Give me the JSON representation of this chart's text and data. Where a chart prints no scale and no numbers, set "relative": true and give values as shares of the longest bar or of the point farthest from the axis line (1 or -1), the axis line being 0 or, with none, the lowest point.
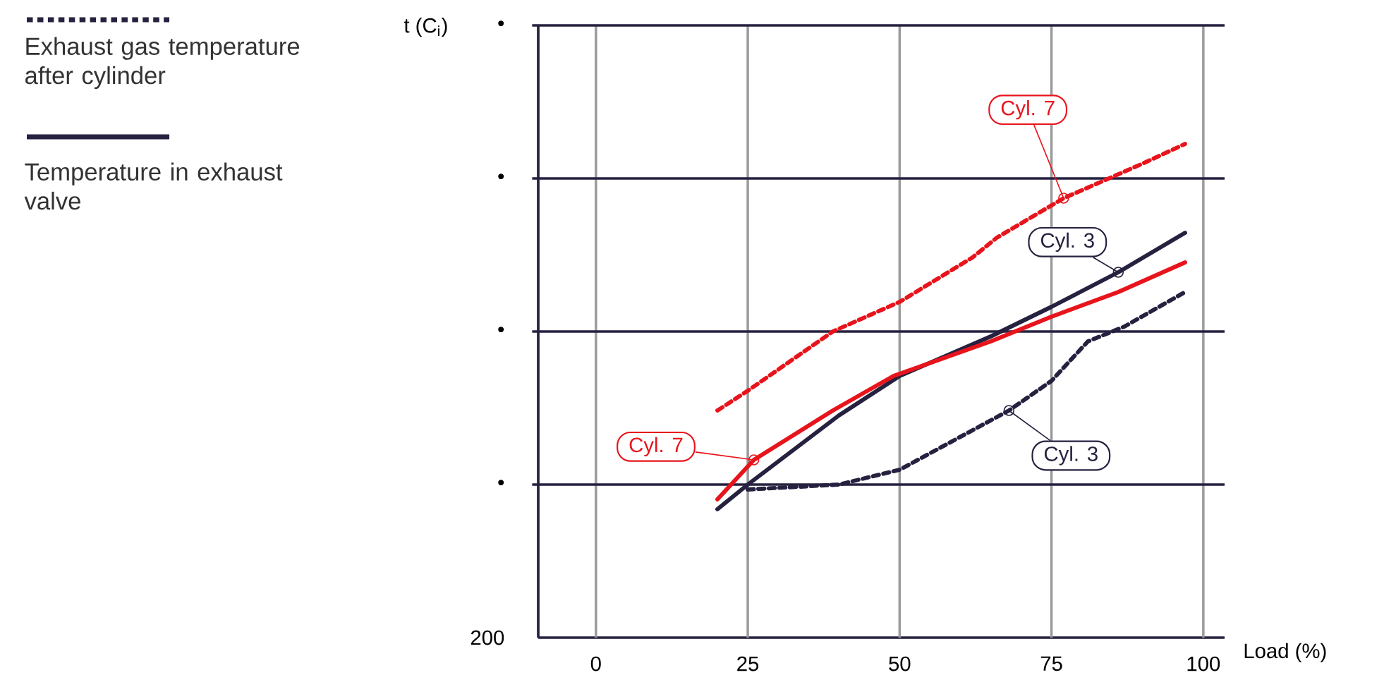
{
  "chart_data": {
    "type": "line",
    "relative": true,
    "xlabel": "Load (%)",
    "xlim": [
      -9.5,
      103.5
    ],
    "xticks": [
      0,
      25,
      50,
      75,
      100
    ],
    "grid": "x",
    "marker": "none",
    "ref_lines": [
      {
        "axis": "y",
        "value": 0.31,
        "color": "#25213f"
      },
      {
        "axis": "y",
        "value": 0.62,
        "color": "#25213f"
      },
      {
        "axis": "y",
        "value": 0.93,
        "color": "#25213f"
      },
      {
        "axis": "y",
        "value": 1.24,
        "color": "#25213f"
      }
    ],
    "series": [
      {
        "color": "#e8141c",
        "line_style": "dashed",
        "x": [
          20,
          25,
          39,
          50,
          62,
          66,
          77,
          90,
          97
        ],
        "values": [
          0.46,
          0.5,
          0.62,
          0.68,
          0.77,
          0.81,
          0.89,
          0.96,
          1
        ]
      },
      {
        "color": "#25213f",
        "line_style": "dashed",
        "x": [
          25,
          40,
          50,
          59,
          68,
          75,
          81,
          87,
          97
        ],
        "values": [
          0.3,
          0.31,
          0.34,
          0.4,
          0.46,
          0.52,
          0.6,
          0.63,
          0.7
        ]
      },
      {
        "color": "#25213f",
        "line_style": "solid",
        "x": [
          20,
          25,
          40,
          50,
          65,
          75,
          86,
          97
        ],
        "values": [
          0.26,
          0.31,
          0.45,
          0.53,
          0.61,
          0.67,
          0.74,
          0.82
        ]
      },
      {
        "color": "#e8141c",
        "line_style": "solid",
        "x": [
          20,
          26,
          39,
          49,
          65,
          75,
          86,
          97
        ],
        "values": [
          0.28,
          0.36,
          0.46,
          0.53,
          0.6,
          0.65,
          0.7,
          0.76
        ]
      }
    ],
    "annotations": [
      "Exhaust gas temperature after cylinder",
      "Temperature in exhaust valve",
      "200",
      "•",
      "•",
      "•",
      "•",
      "t (C$_{i}$)",
      {
        "text": "Cyl. 7",
        "x": 77,
        "y": 0.89
      },
      {
        "text": "Cyl. 3",
        "x": 86,
        "y": 0.74
      },
      {
        "text": "Cyl. 7",
        "x": 26,
        "y": 0.36
      },
      {
        "text": "Cyl. 3",
        "x": 68,
        "y": 0.46
      }
    ]
  }
}
